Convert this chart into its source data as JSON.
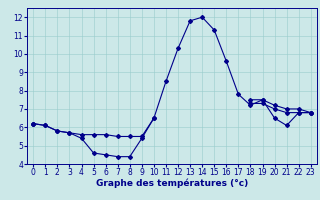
{
  "xlabel": "Graphe des températures (°c)",
  "bg_color": "#cce8e8",
  "line_color": "#00008b",
  "x_hours": [
    0,
    1,
    2,
    3,
    4,
    5,
    6,
    7,
    8,
    9,
    10,
    11,
    12,
    13,
    14,
    15,
    16,
    17,
    18,
    19,
    20,
    21,
    22,
    23
  ],
  "series": {
    "main": [
      6.2,
      6.1,
      5.8,
      5.7,
      5.4,
      4.6,
      4.5,
      4.4,
      4.4,
      5.4,
      6.5,
      8.5,
      10.3,
      11.8,
      12.0,
      11.3,
      9.6,
      7.8,
      7.2,
      7.5,
      6.5,
      6.1,
      6.8,
      6.8
    ],
    "line2": [
      6.2,
      6.1,
      5.8,
      5.7,
      5.6,
      5.6,
      5.6,
      5.5,
      5.5,
      5.5,
      6.5,
      null,
      null,
      null,
      null,
      null,
      null,
      null,
      7.3,
      7.3,
      7.0,
      6.8,
      6.8,
      6.8
    ],
    "line3": [
      6.2,
      null,
      null,
      null,
      null,
      null,
      null,
      null,
      null,
      null,
      null,
      null,
      null,
      null,
      null,
      null,
      null,
      null,
      7.5,
      7.5,
      7.2,
      7.0,
      7.0,
      6.8
    ]
  },
  "ylim": [
    4,
    12.5
  ],
  "xlim": [
    -0.5,
    23.5
  ],
  "yticks": [
    4,
    5,
    6,
    7,
    8,
    9,
    10,
    11,
    12
  ],
  "xticks": [
    0,
    1,
    2,
    3,
    4,
    5,
    6,
    7,
    8,
    9,
    10,
    11,
    12,
    13,
    14,
    15,
    16,
    17,
    18,
    19,
    20,
    21,
    22,
    23
  ],
  "tick_fontsize": 5.5,
  "xlabel_fontsize": 6.5,
  "lw": 0.8,
  "ms": 2.0
}
